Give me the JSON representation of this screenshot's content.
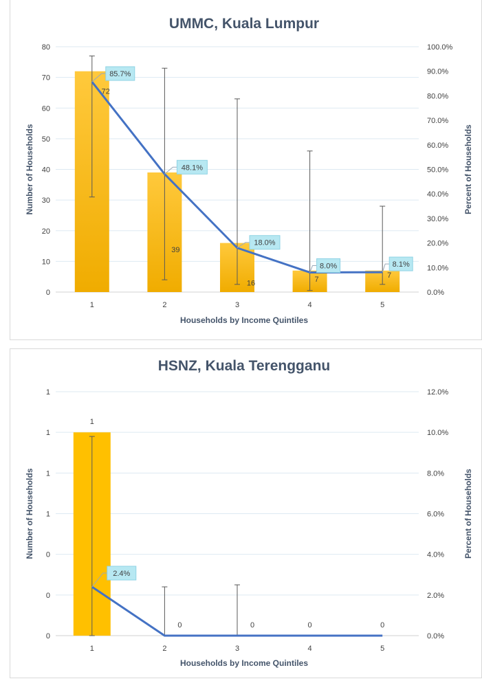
{
  "colors": {
    "bar_top": "#ffc93c",
    "bar_bottom": "#f0ac00",
    "bar_solid": "#ffc000",
    "line": "#4472c4",
    "callout_fill": "#b7e8f2",
    "callout_border": "#8fd3e4",
    "grid": "#dde9f2",
    "error_bar": "#595959"
  },
  "chart_data": [
    {
      "type": "bar",
      "title": "UMMC, Kuala Lumpur",
      "xlabel": "Households by Income Quintiles",
      "ylabel": "Number of Households",
      "y2label": "Percent of Households",
      "categories": [
        "1",
        "2",
        "3",
        "4",
        "5"
      ],
      "ylim": [
        0,
        80
      ],
      "y_ticks": [
        "0",
        "10",
        "20",
        "30",
        "40",
        "50",
        "60",
        "70",
        "80"
      ],
      "y2lim": [
        0,
        100
      ],
      "y2_ticks": [
        "0.0%",
        "10.0%",
        "20.0%",
        "30.0%",
        "40.0%",
        "50.0%",
        "60.0%",
        "70.0%",
        "80.0%",
        "90.0%",
        "100.0%"
      ],
      "bar_style": "gradient",
      "grid": true,
      "series": [
        {
          "kind": "bar",
          "values": [
            72,
            39,
            16,
            7,
            7
          ],
          "labels": [
            "72",
            "39",
            "16",
            "7",
            "7"
          ],
          "error_low": [
            31,
            4,
            2.5,
            0.5,
            2.5
          ],
          "error_high": [
            77,
            73,
            63,
            46,
            28
          ]
        },
        {
          "kind": "line",
          "axis": "secondary",
          "values": [
            85.7,
            48.1,
            18.0,
            8.0,
            8.1
          ],
          "labels": [
            "85.7%",
            "48.1%",
            "18.0%",
            "8.0%",
            "8.1%"
          ]
        }
      ]
    },
    {
      "type": "bar",
      "title": "HSNZ, Kuala Terengganu",
      "xlabel": "Households by Income Quintiles",
      "ylabel": "Number of Households",
      "y2label": "Percent of Households",
      "categories": [
        "1",
        "2",
        "3",
        "4",
        "5"
      ],
      "ylim": [
        0,
        1.2
      ],
      "y_ticks": [
        "0",
        "0",
        "0",
        "1",
        "1",
        "1",
        "1"
      ],
      "y2lim": [
        0,
        12
      ],
      "y2_ticks": [
        "0.0%",
        "2.0%",
        "4.0%",
        "6.0%",
        "8.0%",
        "10.0%",
        "12.0%"
      ],
      "bar_style": "solid",
      "grid": true,
      "series": [
        {
          "kind": "bar",
          "values": [
            1,
            0,
            0,
            0,
            0
          ],
          "labels": [
            "1",
            "0",
            "0",
            "0",
            "0"
          ],
          "error_low": [
            0,
            null,
            null,
            null,
            null
          ],
          "error_high": [
            0.98,
            0.24,
            0.25,
            null,
            null
          ]
        },
        {
          "kind": "line",
          "axis": "secondary",
          "values": [
            2.4,
            0,
            0,
            0,
            0
          ],
          "labels": [
            "2.4%",
            null,
            null,
            null,
            null
          ]
        }
      ]
    }
  ]
}
